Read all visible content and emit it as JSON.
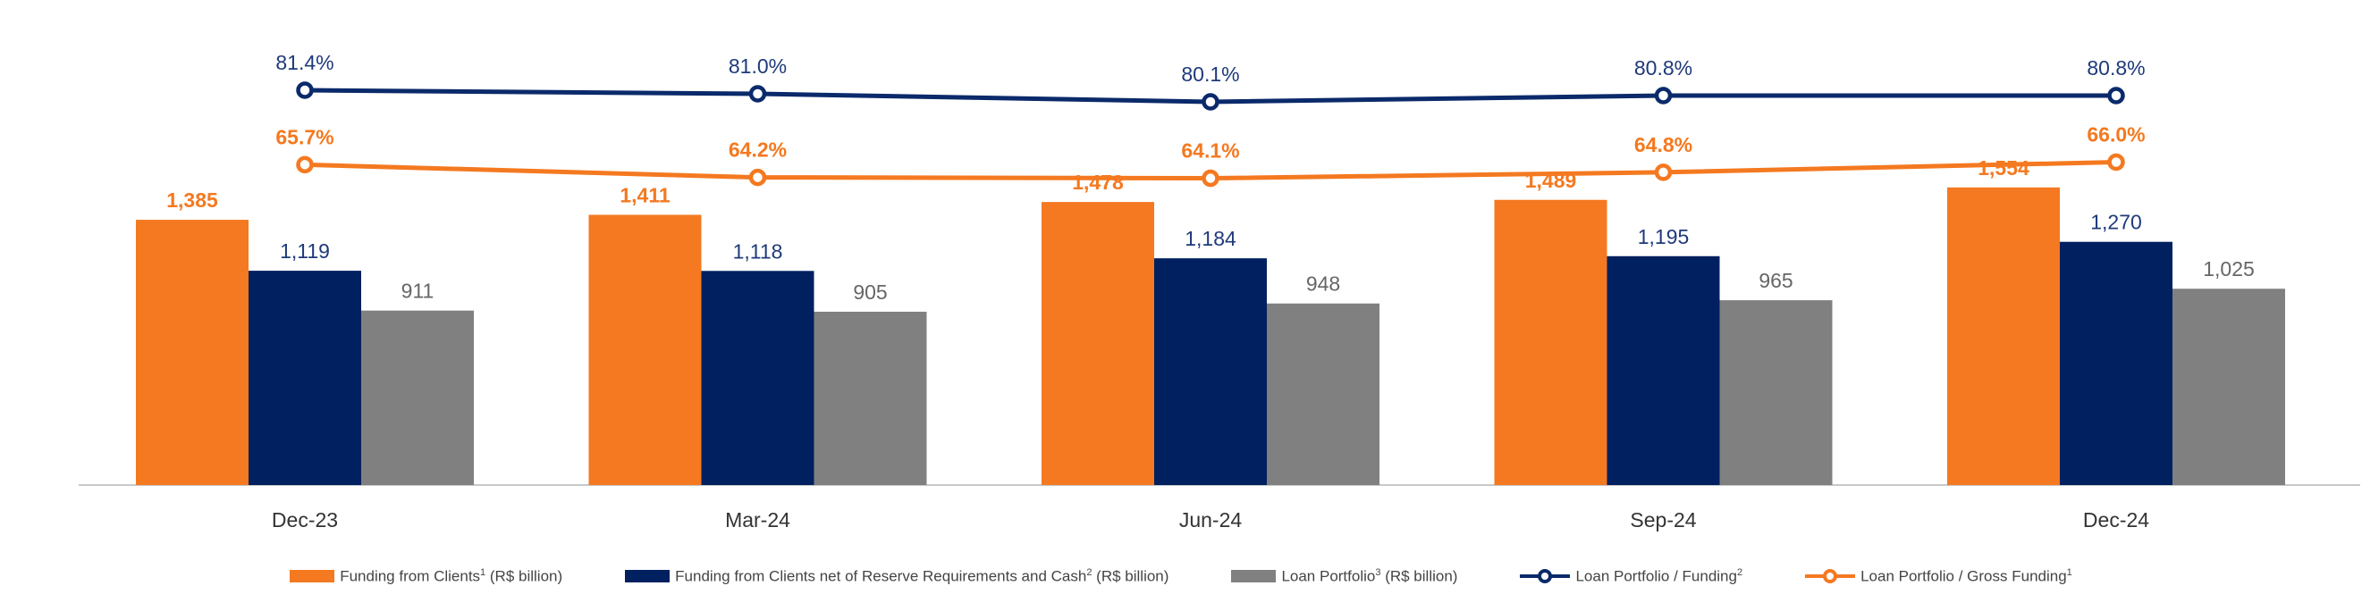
{
  "chart_data": {
    "type": "bar",
    "categories": [
      "Dec-23",
      "Mar-24",
      "Jun-24",
      "Sep-24",
      "Dec-24"
    ],
    "series": [
      {
        "name": "Funding from Clients",
        "sup": "1",
        "suffix": " (R$ billion)",
        "kind": "bar",
        "color": "#F47920",
        "values": [
          1385,
          1411,
          1478,
          1489,
          1554
        ],
        "labels": [
          "1,385",
          "1,411",
          "1,478",
          "1,489",
          "1,554"
        ]
      },
      {
        "name": "Funding from Clients net of Reserve Requirements and Cash",
        "sup": "2",
        "suffix": " (R$ billion)",
        "kind": "bar",
        "color": "#002060",
        "values": [
          1119,
          1118,
          1184,
          1195,
          1270
        ],
        "labels": [
          "1,119",
          "1,118",
          "1,184",
          "1,195",
          "1,270"
        ]
      },
      {
        "name": "Loan Portfolio",
        "sup": "3",
        "suffix": " (R$ billion)",
        "kind": "bar",
        "color": "#808080",
        "values": [
          911,
          905,
          948,
          965,
          1025
        ],
        "labels": [
          "911",
          "905",
          "948",
          "965",
          "1,025"
        ]
      },
      {
        "name": "Loan Portfolio / Funding",
        "sup": "2",
        "suffix": "",
        "kind": "line",
        "color": "#0B2A6B",
        "values": [
          81.4,
          81.0,
          80.1,
          80.8,
          80.8
        ],
        "labels": [
          "81.4%",
          "81.0%",
          "80.1%",
          "80.8%",
          "80.8%"
        ]
      },
      {
        "name": "Loan Portfolio / Gross Funding",
        "sup": "1",
        "suffix": "",
        "kind": "line",
        "color": "#F47920",
        "values": [
          65.7,
          64.2,
          64.1,
          64.8,
          66.0
        ],
        "labels": [
          "65.7%",
          "64.2%",
          "64.1%",
          "64.8%",
          "66.0%"
        ]
      }
    ],
    "grid": false,
    "legend_position": "bottom",
    "title": "",
    "xlabel": "",
    "ylabel": ""
  }
}
